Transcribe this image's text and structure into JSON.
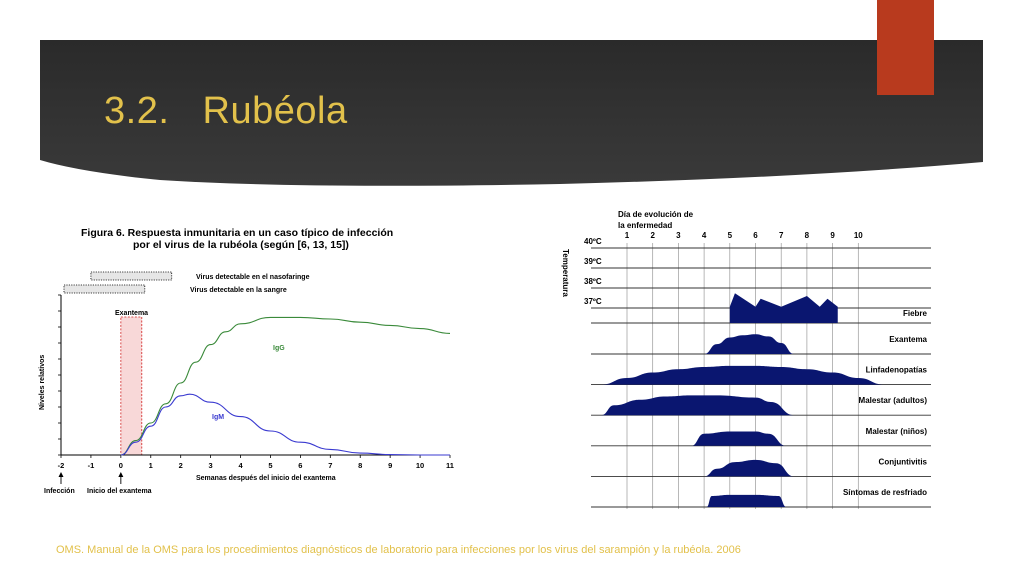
{
  "slide": {
    "title": "3.2.   Rubéola",
    "citation": "OMS. Manual de la OMS para los procedimientos diagnósticos de laboratorio para infecciones por los virus del sarampión y la rubéola. 2006",
    "colors": {
      "banner": "#2e2e2e",
      "title": "#e2c14b",
      "accent": "#b83a1e",
      "curve_igg": "#3a8a3a",
      "curve_igm": "#3a3ad0",
      "area_fill": "#0a1670"
    }
  },
  "chart_data": [
    {
      "type": "line",
      "title": "Figura 6. Respuesta inmunitaria en un caso típico de infección",
      "subtitle": "por el virus de la rubéola (según [6, 13, 15])",
      "xlabel": "Semanas después del inicio del exantema",
      "ylabel": "Niveles relativos",
      "x_ticks": [
        "-2",
        "-1",
        "0",
        "1",
        "2",
        "3",
        "4",
        "5",
        "6",
        "7",
        "8",
        "9",
        "10",
        "11"
      ],
      "xlim": [
        -2,
        11
      ],
      "ylim": [
        0,
        10
      ],
      "grid": false,
      "series": [
        {
          "name": "IgG",
          "x": [
            0,
            0.5,
            1,
            1.5,
            2,
            2.5,
            3,
            3.5,
            4,
            5,
            6,
            7,
            8,
            9,
            10,
            11
          ],
          "y": [
            0,
            0.9,
            2.0,
            3.2,
            4.5,
            5.8,
            6.9,
            7.7,
            8.2,
            8.6,
            8.6,
            8.5,
            8.3,
            8.1,
            7.9,
            7.6
          ]
        },
        {
          "name": "IgM",
          "x": [
            0,
            0.5,
            1,
            1.5,
            2,
            2.3,
            3,
            4,
            5,
            6,
            7,
            8,
            9,
            10,
            11
          ],
          "y": [
            0,
            0.8,
            1.8,
            3.0,
            3.7,
            3.8,
            3.3,
            2.4,
            1.5,
            0.8,
            0.35,
            0.12,
            0.03,
            0,
            0
          ]
        }
      ],
      "bands": [
        {
          "label": "Virus detectable en el nasofaringe",
          "start": -1,
          "end": 1.7
        },
        {
          "label": "Virus detectable en la sangre",
          "start": -1.9,
          "end": 0.8
        }
      ],
      "shaded_region": {
        "label": "Exantema",
        "start": 0,
        "end": 0.7
      },
      "annotations": [
        {
          "label": "Infección",
          "x": -2
        },
        {
          "label": "Inicio del exantema",
          "x": 0
        }
      ]
    },
    {
      "type": "area",
      "axis_title": [
        "Día de evolución de",
        "la enfermedad"
      ],
      "days": [
        "1",
        "2",
        "3",
        "4",
        "5",
        "6",
        "7",
        "8",
        "9",
        "10"
      ],
      "temperature_label": "Temperatura",
      "temperature_ticks": [
        "40ºC",
        "39ºC",
        "38ºC",
        "37ºC"
      ],
      "fever": {
        "name": "Fiebre",
        "x": [
          5.0,
          5.0,
          5.2,
          6.0,
          6.2,
          7.0,
          8.0,
          8.5,
          8.8,
          9.2,
          9.2
        ],
        "y": [
          37,
          37.6,
          38.1,
          37.6,
          37.9,
          37.6,
          38.0,
          37.6,
          37.9,
          37.6,
          37
        ]
      },
      "symptoms": [
        {
          "name": "Exantema",
          "x": [
            4.0,
            4.5,
            5.0,
            5.5,
            6.0,
            6.5,
            7.0,
            7.5
          ],
          "y": [
            0,
            0.45,
            0.75,
            0.85,
            0.9,
            0.8,
            0.5,
            0
          ]
        },
        {
          "name": "Linfadenopatías",
          "x": [
            0,
            1,
            2,
            3,
            4,
            5,
            6,
            7,
            8,
            9,
            10,
            11
          ],
          "y": [
            0,
            0.3,
            0.55,
            0.7,
            0.8,
            0.85,
            0.85,
            0.8,
            0.7,
            0.55,
            0.3,
            0
          ]
        },
        {
          "name": "Malestar (adultos)",
          "x": [
            0,
            0.5,
            1.5,
            2.5,
            3.5,
            4.5,
            6.0,
            6.6,
            7.5
          ],
          "y": [
            0,
            0.45,
            0.7,
            0.85,
            0.9,
            0.9,
            0.8,
            0.6,
            0
          ]
        },
        {
          "name": "Malestar (niños)",
          "x": [
            3.5,
            4.0,
            5.0,
            6.0,
            6.5,
            7.2
          ],
          "y": [
            0,
            0.55,
            0.65,
            0.65,
            0.55,
            0
          ]
        },
        {
          "name": "Conjuntivitis",
          "x": [
            4.0,
            4.5,
            5.2,
            6.0,
            6.8,
            7.5
          ],
          "y": [
            0,
            0.35,
            0.65,
            0.75,
            0.6,
            0
          ]
        },
        {
          "name": "Síntomas de resfriado",
          "x": [
            4.1,
            4.3,
            5.0,
            6.0,
            6.9,
            7.2
          ],
          "y": [
            0,
            0.5,
            0.55,
            0.55,
            0.5,
            0
          ]
        }
      ]
    }
  ]
}
